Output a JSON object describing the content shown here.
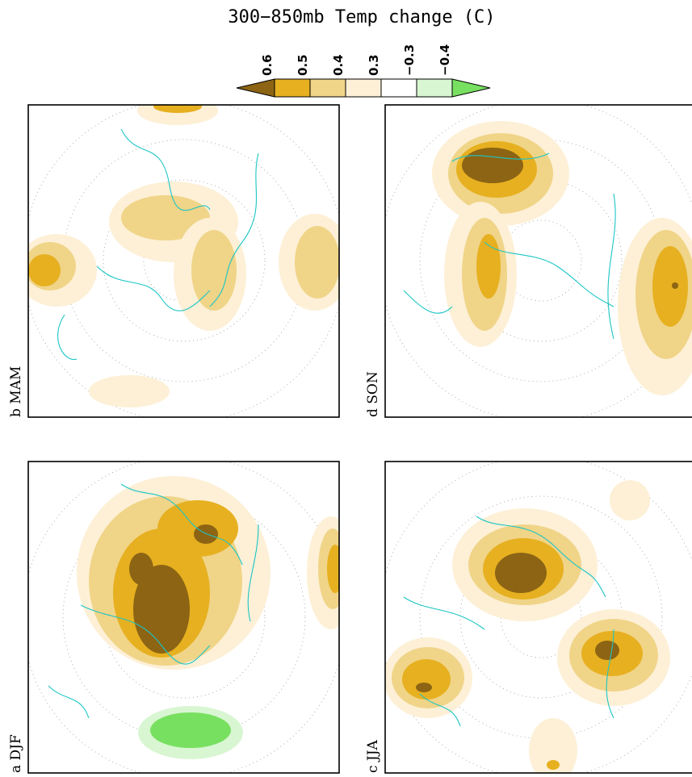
{
  "title": "300−850mb Temp change (C)",
  "colorbar": {
    "labels": [
      "0.6",
      "0.5",
      "0.4",
      "0.3",
      "−0.3",
      "−0.4"
    ],
    "colors": [
      "#8c6414",
      "#e6b020",
      "#f0d488",
      "#fdf0d6",
      "#ffffff",
      "#d8f6d2",
      "#78e060"
    ]
  },
  "panels": [
    {
      "label": "b MAM"
    },
    {
      "label": "d SON"
    },
    {
      "label": "a DJF"
    },
    {
      "label": "c JJA"
    }
  ]
}
